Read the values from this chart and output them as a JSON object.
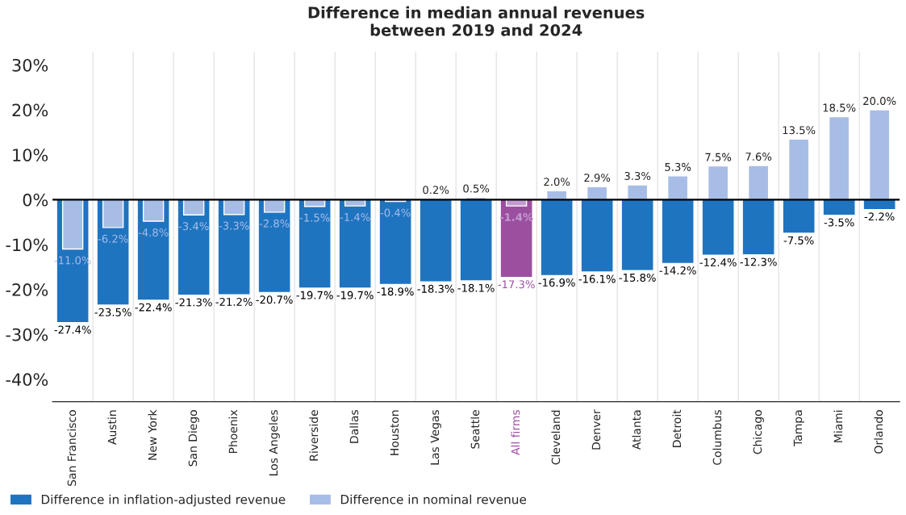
{
  "chart_data": {
    "type": "bar",
    "title": "Difference in median annual revenues\nbetween 2019 and 2024",
    "categories": [
      "San Francisco",
      "Austin",
      "New York",
      "San Diego",
      "Phoenix",
      "Los Angeles",
      "Riverside",
      "Dallas",
      "Houston",
      "Las Vegas",
      "Seattle",
      "All firms",
      "Cleveland",
      "Denver",
      "Atlanta",
      "Detroit",
      "Columbus",
      "Chicago",
      "Tampa",
      "Miami",
      "Orlando"
    ],
    "series": [
      {
        "name": "Difference in inflation-adjusted revenue",
        "color": "#1f74c0",
        "colors": [
          "#1f74c0",
          "#1f74c0",
          "#1f74c0",
          "#1f74c0",
          "#1f74c0",
          "#1f74c0",
          "#1f74c0",
          "#1f74c0",
          "#1f74c0",
          "#1f74c0",
          "#1f74c0",
          "#9b4f9f",
          "#1f74c0",
          "#1f74c0",
          "#1f74c0",
          "#1f74c0",
          "#1f74c0",
          "#1f74c0",
          "#1f74c0",
          "#1f74c0",
          "#1f74c0"
        ],
        "values": [
          -27.4,
          -23.5,
          -22.4,
          -21.3,
          -21.2,
          -20.7,
          -19.7,
          -19.7,
          -18.9,
          -18.3,
          -18.1,
          -17.3,
          -16.9,
          -16.1,
          -15.8,
          -14.2,
          -12.4,
          -12.3,
          -7.5,
          -3.5,
          -2.2
        ],
        "value_labels": [
          "-27.4%",
          "-23.5%",
          "-22.4%",
          "-21.3%",
          "-21.2%",
          "-20.7%",
          "-19.7%",
          "-19.7%",
          "-18.9%",
          "-18.3%",
          "-18.1%",
          "-17.3%",
          "-16.9%",
          "-16.1%",
          "-15.8%",
          "-14.2%",
          "-12.4%",
          "-12.3%",
          "-7.5%",
          "-3.5%",
          "-2.2%"
        ]
      },
      {
        "name": "Difference in nominal revenue",
        "color": "#a7bde6",
        "colors": [
          "#a7bde6",
          "#a7bde6",
          "#a7bde6",
          "#a7bde6",
          "#a7bde6",
          "#a7bde6",
          "#a7bde6",
          "#a7bde6",
          "#a7bde6",
          "#a7bde6",
          "#a7bde6",
          "#c49bd0",
          "#a7bde6",
          "#a7bde6",
          "#a7bde6",
          "#a7bde6",
          "#a7bde6",
          "#a7bde6",
          "#a7bde6",
          "#a7bde6",
          "#a7bde6"
        ],
        "values": [
          -11.0,
          -6.2,
          -4.8,
          -3.4,
          -3.3,
          -2.8,
          -1.5,
          -1.4,
          -0.4,
          0.2,
          0.5,
          -1.4,
          2.0,
          2.9,
          3.3,
          5.3,
          7.5,
          7.6,
          13.5,
          18.5,
          20.0
        ],
        "value_labels": [
          "-11.0%",
          "-6.2%",
          "-4.8%",
          "-3.4%",
          "-3.3%",
          "-2.8%",
          "-1.5%",
          "-1.4%",
          "-0.4%",
          "0.2%",
          "0.5%",
          "-1.4%",
          "2.0%",
          "2.9%",
          "3.3%",
          "5.3%",
          "7.5%",
          "7.6%",
          "13.5%",
          "18.5%",
          "20.0%"
        ]
      }
    ],
    "ylim": [
      -45,
      33
    ],
    "yticks": [
      {
        "value": -40,
        "label": "-40%"
      },
      {
        "value": -30,
        "label": "-30%"
      },
      {
        "value": -20,
        "label": "-20%"
      },
      {
        "value": -10,
        "label": "-10%"
      },
      {
        "value": 0,
        "label": "0%"
      },
      {
        "value": 10,
        "label": "10%"
      },
      {
        "value": 20,
        "label": "20%"
      },
      {
        "value": 30,
        "label": "30%"
      }
    ],
    "ref_lines": [
      {
        "axis": "y",
        "value": 0,
        "color": "#000000"
      }
    ],
    "grid": "x",
    "legend": "bottom"
  }
}
